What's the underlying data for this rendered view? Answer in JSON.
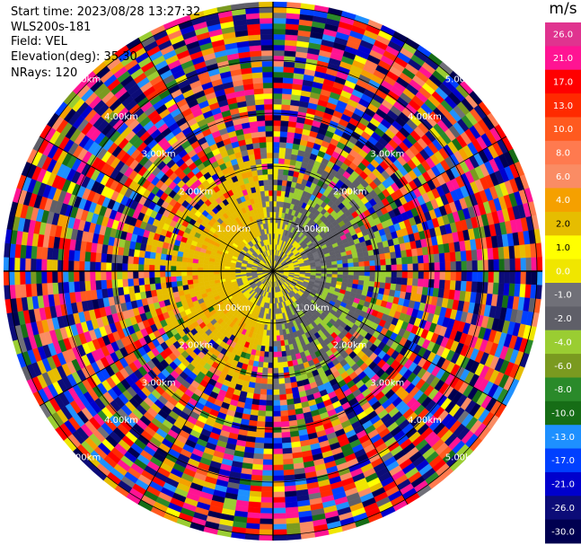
{
  "header": {
    "start_time": "Start time: 2023/08/28 13:27:32",
    "instrument": "WLS200s-181",
    "field": "Field: VEL",
    "elevation": "Elevation(deg): 35.30",
    "nrays": "NRays: 120"
  },
  "colorbar": {
    "unit": "m/s",
    "labels": [
      "26.0",
      "21.0",
      "17.0",
      "13.0",
      "10.0",
      "8.0",
      "6.0",
      "4.0",
      "2.0",
      "1.0",
      "0.0",
      "-1.0",
      "-2.0",
      "-4.0",
      "-6.0",
      "-8.0",
      "-10.0",
      "-13.0",
      "-17.0",
      "-21.0",
      "-26.0",
      "-30.0"
    ],
    "colors": [
      "#e0338f",
      "#ff1493",
      "#ff0000",
      "#ff2a00",
      "#ff5a1f",
      "#ff7a4f",
      "#fa8c64",
      "#f5a000",
      "#e6bd00",
      "#ffff00",
      "#f0e600",
      "#707078",
      "#5f5f68",
      "#9acd32",
      "#7a9a20",
      "#2a8a2a",
      "#166d16",
      "#1e90ff",
      "#0040ff",
      "#0000cd",
      "#0c0c78",
      "#000050"
    ]
  },
  "chart_data": {
    "type": "heatmap",
    "projection": "polar (PPI scan)",
    "field": "VEL",
    "unit": "m/s",
    "nrays": 120,
    "elevation_deg": 35.3,
    "range_rings_km": [
      "1.00km",
      "2.00km",
      "3.00km",
      "4.00km",
      "5.00km"
    ],
    "description_values": {
      "near_range_pattern": "gray near 0 m/s in center, yellow (~2-4 m/s) to the west, yellow-green (~-1 to -2 m/s) to the east",
      "far_range_pattern": "noisy values spanning -30 to 26 m/s"
    },
    "colorbar_range": [
      -30.0,
      26.0
    ]
  }
}
